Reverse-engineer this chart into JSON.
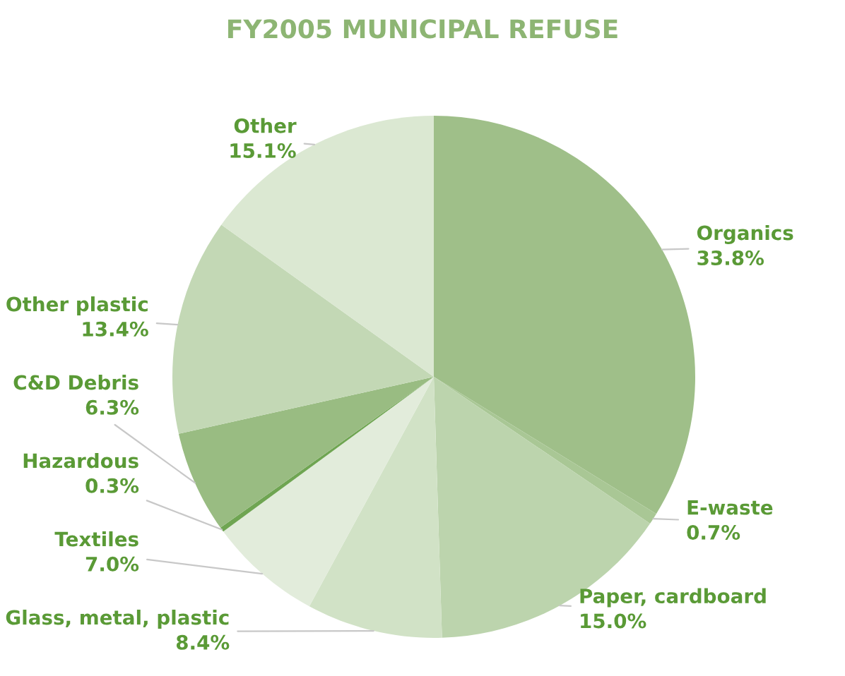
{
  "chart_data": {
    "type": "pie",
    "title": "FY2005 MUNICIPAL REFUSE",
    "categories": [
      "Organics",
      "E-waste",
      "Paper, cardboard",
      "Glass, metal, plastic",
      "Textiles",
      "Hazardous",
      "C&D Debris",
      "Other plastic",
      "Other"
    ],
    "values": [
      33.8,
      0.7,
      15.0,
      8.4,
      7.0,
      0.3,
      6.3,
      13.4,
      15.1
    ],
    "colors": [
      "#9fbf89",
      "#a9c795",
      "#bcd4ad",
      "#d1e2c6",
      "#e2ecdb",
      "#6fa552",
      "#99bc82",
      "#c3d8b5",
      "#dbe8d2"
    ],
    "value_labels": [
      "33.8%",
      "0.7%",
      "15.0%",
      "8.4%",
      "7.0%",
      "0.3%",
      "6.3%",
      "13.4%",
      "15.1%"
    ]
  }
}
